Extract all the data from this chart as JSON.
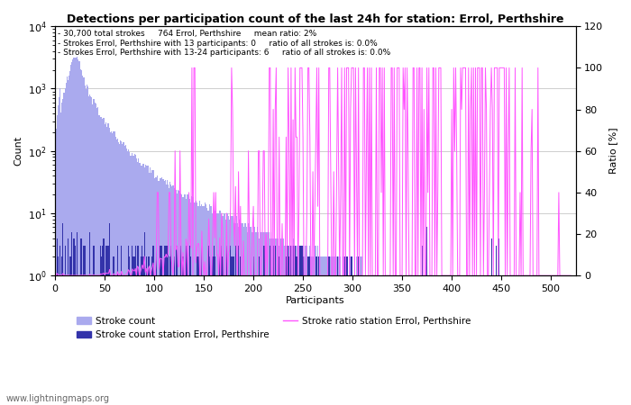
{
  "title": "Detections per participation count of the last 24h for station: Errol, Perthshire",
  "xlabel": "Participants",
  "ylabel_left": "Count",
  "ylabel_right": "Ratio [%]",
  "annotation_lines": [
    "30,700 total strokes     764 Errol, Perthshire     mean ratio: 2%",
    "Strokes Errol, Perthshire with 13 participants: 0     ratio of all strokes is: 0.0%",
    "Strokes Errol, Perthshire with 13-24 participants: 6     ratio of all strokes is: 0.0%"
  ],
  "watermark": "www.lightningmaps.org",
  "x_max": 520,
  "total_strokes": 30700,
  "station_strokes": 764,
  "mean_ratio": 2,
  "bar_color_global": "#aaaaee",
  "bar_color_station": "#3333aa",
  "line_color_ratio": "#ff55ff",
  "legend_labels": [
    "Stroke count",
    "Stroke count station Errol, Perthshire",
    "Stroke ratio station Errol, Perthshire"
  ],
  "ylim_left": [
    1.0,
    10000.0
  ],
  "ylim_right": [
    0,
    120
  ],
  "yticks_right": [
    0,
    20,
    40,
    60,
    80,
    100,
    120
  ],
  "xticks": [
    0,
    50,
    100,
    150,
    200,
    250,
    300,
    350,
    400,
    450,
    500
  ]
}
